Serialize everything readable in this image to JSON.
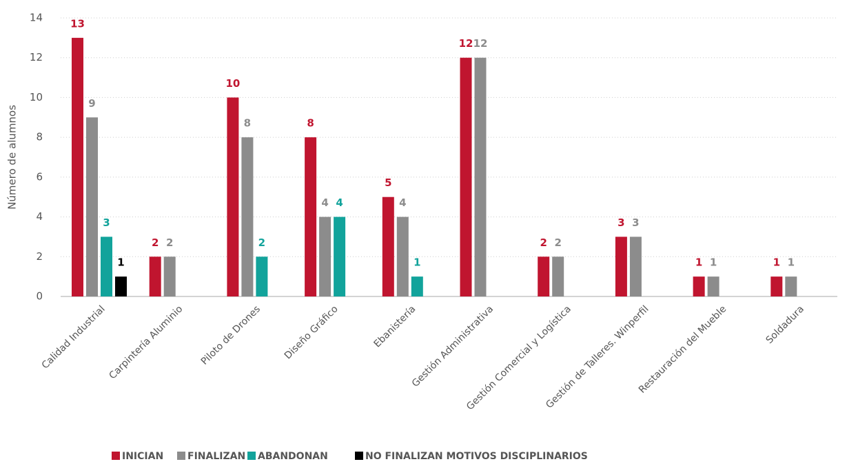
{
  "chart_data": {
    "type": "bar",
    "y_label": "Número de alumnos",
    "categories": [
      "Calidad Industrial",
      "Carpintería Aluminio",
      "Piloto de Drones",
      "Diseño Gráfico",
      "Ebanistería",
      "Gestión Administrativa",
      "Gestión Comercial y Logística",
      "Gestión de Talleres. Winperfil",
      "Restauración del Mueble",
      "Soldadura"
    ],
    "series": [
      {
        "name": "INICIAN",
        "color": "#c0152f",
        "values": [
          13,
          2,
          10,
          8,
          5,
          12,
          2,
          3,
          1,
          1
        ]
      },
      {
        "name": "FINALIZAN",
        "color": "#8c8c8c",
        "values": [
          9,
          2,
          8,
          4,
          4,
          12,
          2,
          3,
          1,
          1
        ]
      },
      {
        "name": "ABANDONAN",
        "color": "#12a39b",
        "values": [
          3,
          null,
          2,
          4,
          1,
          null,
          null,
          null,
          null,
          null
        ]
      },
      {
        "name": "NO FINALIZAN MOTIVOS DISCIPLINARIOS",
        "color": "#000000",
        "values": [
          1,
          null,
          null,
          null,
          null,
          null,
          null,
          null,
          null,
          null
        ]
      }
    ],
    "ylim": [
      0,
      14
    ],
    "yticks": [
      0,
      2,
      4,
      6,
      8,
      10,
      12,
      14
    ],
    "grid": true,
    "legend": "bottom"
  }
}
